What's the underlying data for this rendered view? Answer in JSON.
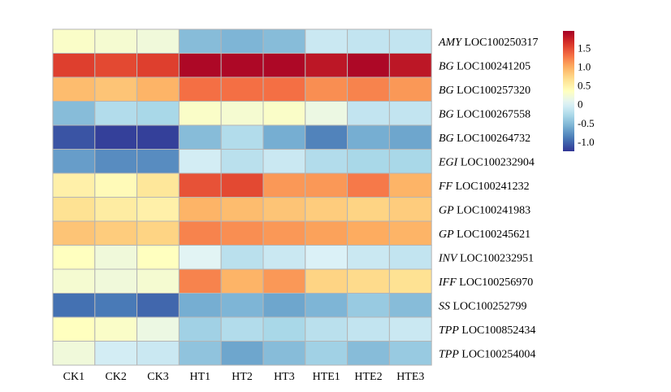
{
  "chart_data": {
    "type": "heatmap",
    "columns": [
      "CK1",
      "CK2",
      "CK3",
      "HT1",
      "HT2",
      "HT3",
      "HTE1",
      "HTE2",
      "HTE3"
    ],
    "rows": [
      {
        "gene": "AMY",
        "loc": "LOC100250317"
      },
      {
        "gene": "BG",
        "loc": "LOC100241205"
      },
      {
        "gene": "BG",
        "loc": "LOC100257320"
      },
      {
        "gene": "BG",
        "loc": "LOC100267558"
      },
      {
        "gene": "BG",
        "loc": "LOC100264732"
      },
      {
        "gene": "EGI",
        "loc": "LOC100232904"
      },
      {
        "gene": "FF",
        "loc": "LOC100241232"
      },
      {
        "gene": "GP",
        "loc": "LOC100241983"
      },
      {
        "gene": "GP",
        "loc": "LOC100245621"
      },
      {
        "gene": "INV",
        "loc": "LOC100232951"
      },
      {
        "gene": "IFF",
        "loc": "LOC100256970"
      },
      {
        "gene": "SS",
        "loc": "LOC100252799"
      },
      {
        "gene": "TPP",
        "loc": "LOC100852434"
      },
      {
        "gene": "TPP",
        "loc": "LOC100254004"
      }
    ],
    "values": [
      [
        0.3,
        0.25,
        0.2,
        -0.5,
        -0.55,
        -0.5,
        -0.1,
        -0.15,
        -0.15
      ],
      [
        1.55,
        1.5,
        1.55,
        1.9,
        1.9,
        1.9,
        1.8,
        1.9,
        1.8
      ],
      [
        0.9,
        0.85,
        0.95,
        1.3,
        1.3,
        1.3,
        1.15,
        1.2,
        1.1
      ],
      [
        -0.5,
        -0.25,
        -0.3,
        0.3,
        0.25,
        0.3,
        0.15,
        -0.15,
        -0.15
      ],
      [
        -1.1,
        -1.2,
        -1.2,
        -0.5,
        -0.25,
        -0.6,
        -0.85,
        -0.6,
        -0.65
      ],
      [
        -0.7,
        -0.8,
        -0.8,
        -0.05,
        -0.2,
        -0.1,
        -0.25,
        -0.3,
        -0.3
      ],
      [
        0.5,
        0.4,
        0.6,
        1.45,
        1.5,
        1.1,
        1.1,
        1.25,
        0.95
      ],
      [
        0.65,
        0.55,
        0.5,
        0.95,
        0.9,
        0.85,
        0.8,
        0.75,
        0.8
      ],
      [
        0.85,
        0.8,
        0.75,
        1.2,
        1.15,
        1.1,
        1.05,
        1.0,
        0.95
      ],
      [
        0.35,
        0.2,
        0.35,
        0.05,
        -0.2,
        -0.1,
        0.0,
        -0.1,
        -0.15
      ],
      [
        0.25,
        0.2,
        0.25,
        1.2,
        0.95,
        1.1,
        0.75,
        0.7,
        0.65
      ],
      [
        -0.95,
        -0.9,
        -1.0,
        -0.6,
        -0.55,
        -0.65,
        -0.55,
        -0.4,
        -0.5
      ],
      [
        0.35,
        0.3,
        0.15,
        -0.35,
        -0.25,
        -0.3,
        -0.2,
        -0.15,
        -0.1
      ],
      [
        0.2,
        -0.05,
        -0.1,
        -0.45,
        -0.65,
        -0.5,
        -0.35,
        -0.5,
        -0.4
      ]
    ],
    "colorbar": {
      "ticks": [
        1.5,
        1.0,
        0.5,
        0,
        -0.5,
        -1.0
      ],
      "tick_labels": [
        "1.5",
        "1.0",
        "0.5",
        "0",
        "-0.5",
        "-1.0"
      ],
      "min": -1.25,
      "max": 1.95,
      "colors": [
        "#313695",
        "#4575b4",
        "#74add1",
        "#abd9e9",
        "#e0f3f8",
        "#ffffbf",
        "#fee090",
        "#fdae61",
        "#f46d43",
        "#d73027",
        "#a50026"
      ]
    },
    "grid": true,
    "legend_position": "right"
  }
}
